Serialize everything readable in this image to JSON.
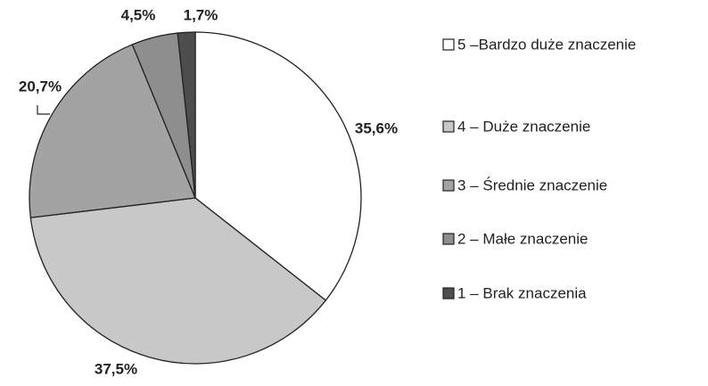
{
  "chart_data": {
    "type": "pie",
    "categories": [
      "5 –Bardzo duże znaczenie",
      "4 – Duże znaczenie",
      "3 – Średnie znaczenie",
      "2 – Małe znaczenie",
      "1 – Brak znaczenia"
    ],
    "values": [
      35.6,
      37.5,
      20.7,
      4.5,
      1.7
    ],
    "value_labels": [
      "35,6%",
      "37,5%",
      "20,7%",
      "4,5%",
      "1,7%"
    ],
    "colors": [
      "#ffffff",
      "#c8c8c8",
      "#a3a3a3",
      "#8e8e8e",
      "#4d4d4d"
    ],
    "legend": "right"
  }
}
